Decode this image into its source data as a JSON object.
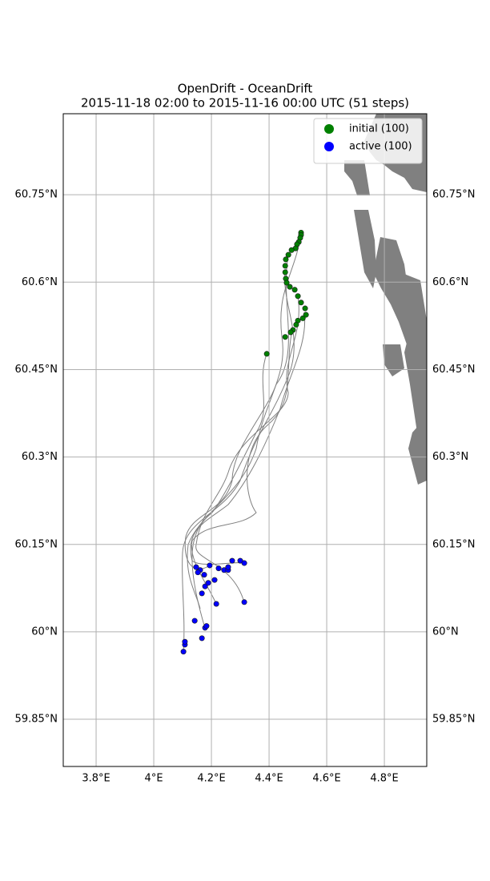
{
  "chart_data": {
    "type": "scatter",
    "title": "OpenDrift - OceanDrift",
    "subtitle": "2015-11-18 02:00 to 2015-11-16 00:00 UTC (51 steps)",
    "xlim": [
      3.686,
      4.947
    ],
    "ylim": [
      59.769,
      60.889
    ],
    "xticks": [
      {
        "value": 3.8,
        "label": "3.8°E"
      },
      {
        "value": 4.0,
        "label": "4°E"
      },
      {
        "value": 4.2,
        "label": "4.2°E"
      },
      {
        "value": 4.4,
        "label": "4.4°E"
      },
      {
        "value": 4.6,
        "label": "4.6°E"
      },
      {
        "value": 4.8,
        "label": "4.8°E"
      }
    ],
    "yticks": [
      {
        "value": 59.85,
        "label": "59.85°N"
      },
      {
        "value": 60.0,
        "label": "60°N"
      },
      {
        "value": 60.15,
        "label": "60.15°N"
      },
      {
        "value": 60.3,
        "label": "60.3°N"
      },
      {
        "value": 60.45,
        "label": "60.45°N"
      },
      {
        "value": 60.6,
        "label": "60.6°N"
      },
      {
        "value": 60.75,
        "label": "60.75°N"
      }
    ],
    "grid": true,
    "legend": "upper right",
    "series": [
      {
        "name": "initial (100)",
        "color": "#008000",
        "x": [
          4.511,
          4.511,
          4.508,
          4.503,
          4.497,
          4.492,
          4.478,
          4.467,
          4.458,
          4.456,
          4.456,
          4.458,
          4.461,
          4.472,
          4.489,
          4.5,
          4.511,
          4.525,
          4.528,
          4.517,
          4.5,
          4.494,
          4.483,
          4.475,
          4.456,
          4.392
        ],
        "y": [
          60.685,
          60.681,
          60.676,
          60.669,
          60.665,
          60.658,
          60.655,
          60.647,
          60.639,
          60.628,
          60.617,
          60.606,
          60.599,
          60.592,
          60.587,
          60.576,
          60.565,
          60.555,
          60.544,
          60.538,
          60.534,
          60.527,
          60.518,
          60.514,
          60.506,
          60.477
        ]
      },
      {
        "name": "active (100)",
        "color": "#0000ff",
        "x": [
          4.103,
          4.108,
          4.108,
          4.142,
          4.167,
          4.178,
          4.183,
          4.167,
          4.178,
          4.189,
          4.161,
          4.153,
          4.175,
          4.194,
          4.211,
          4.217,
          4.225,
          4.244,
          4.258,
          4.272,
          4.3,
          4.314,
          4.314,
          4.258,
          4.147
        ],
        "y": [
          59.966,
          59.978,
          59.983,
          60.019,
          59.989,
          60.007,
          60.01,
          60.066,
          60.078,
          60.084,
          60.106,
          60.102,
          60.098,
          60.114,
          60.089,
          60.048,
          60.109,
          60.106,
          60.106,
          60.122,
          60.122,
          60.118,
          60.051,
          60.111,
          60.111
        ]
      }
    ]
  }
}
